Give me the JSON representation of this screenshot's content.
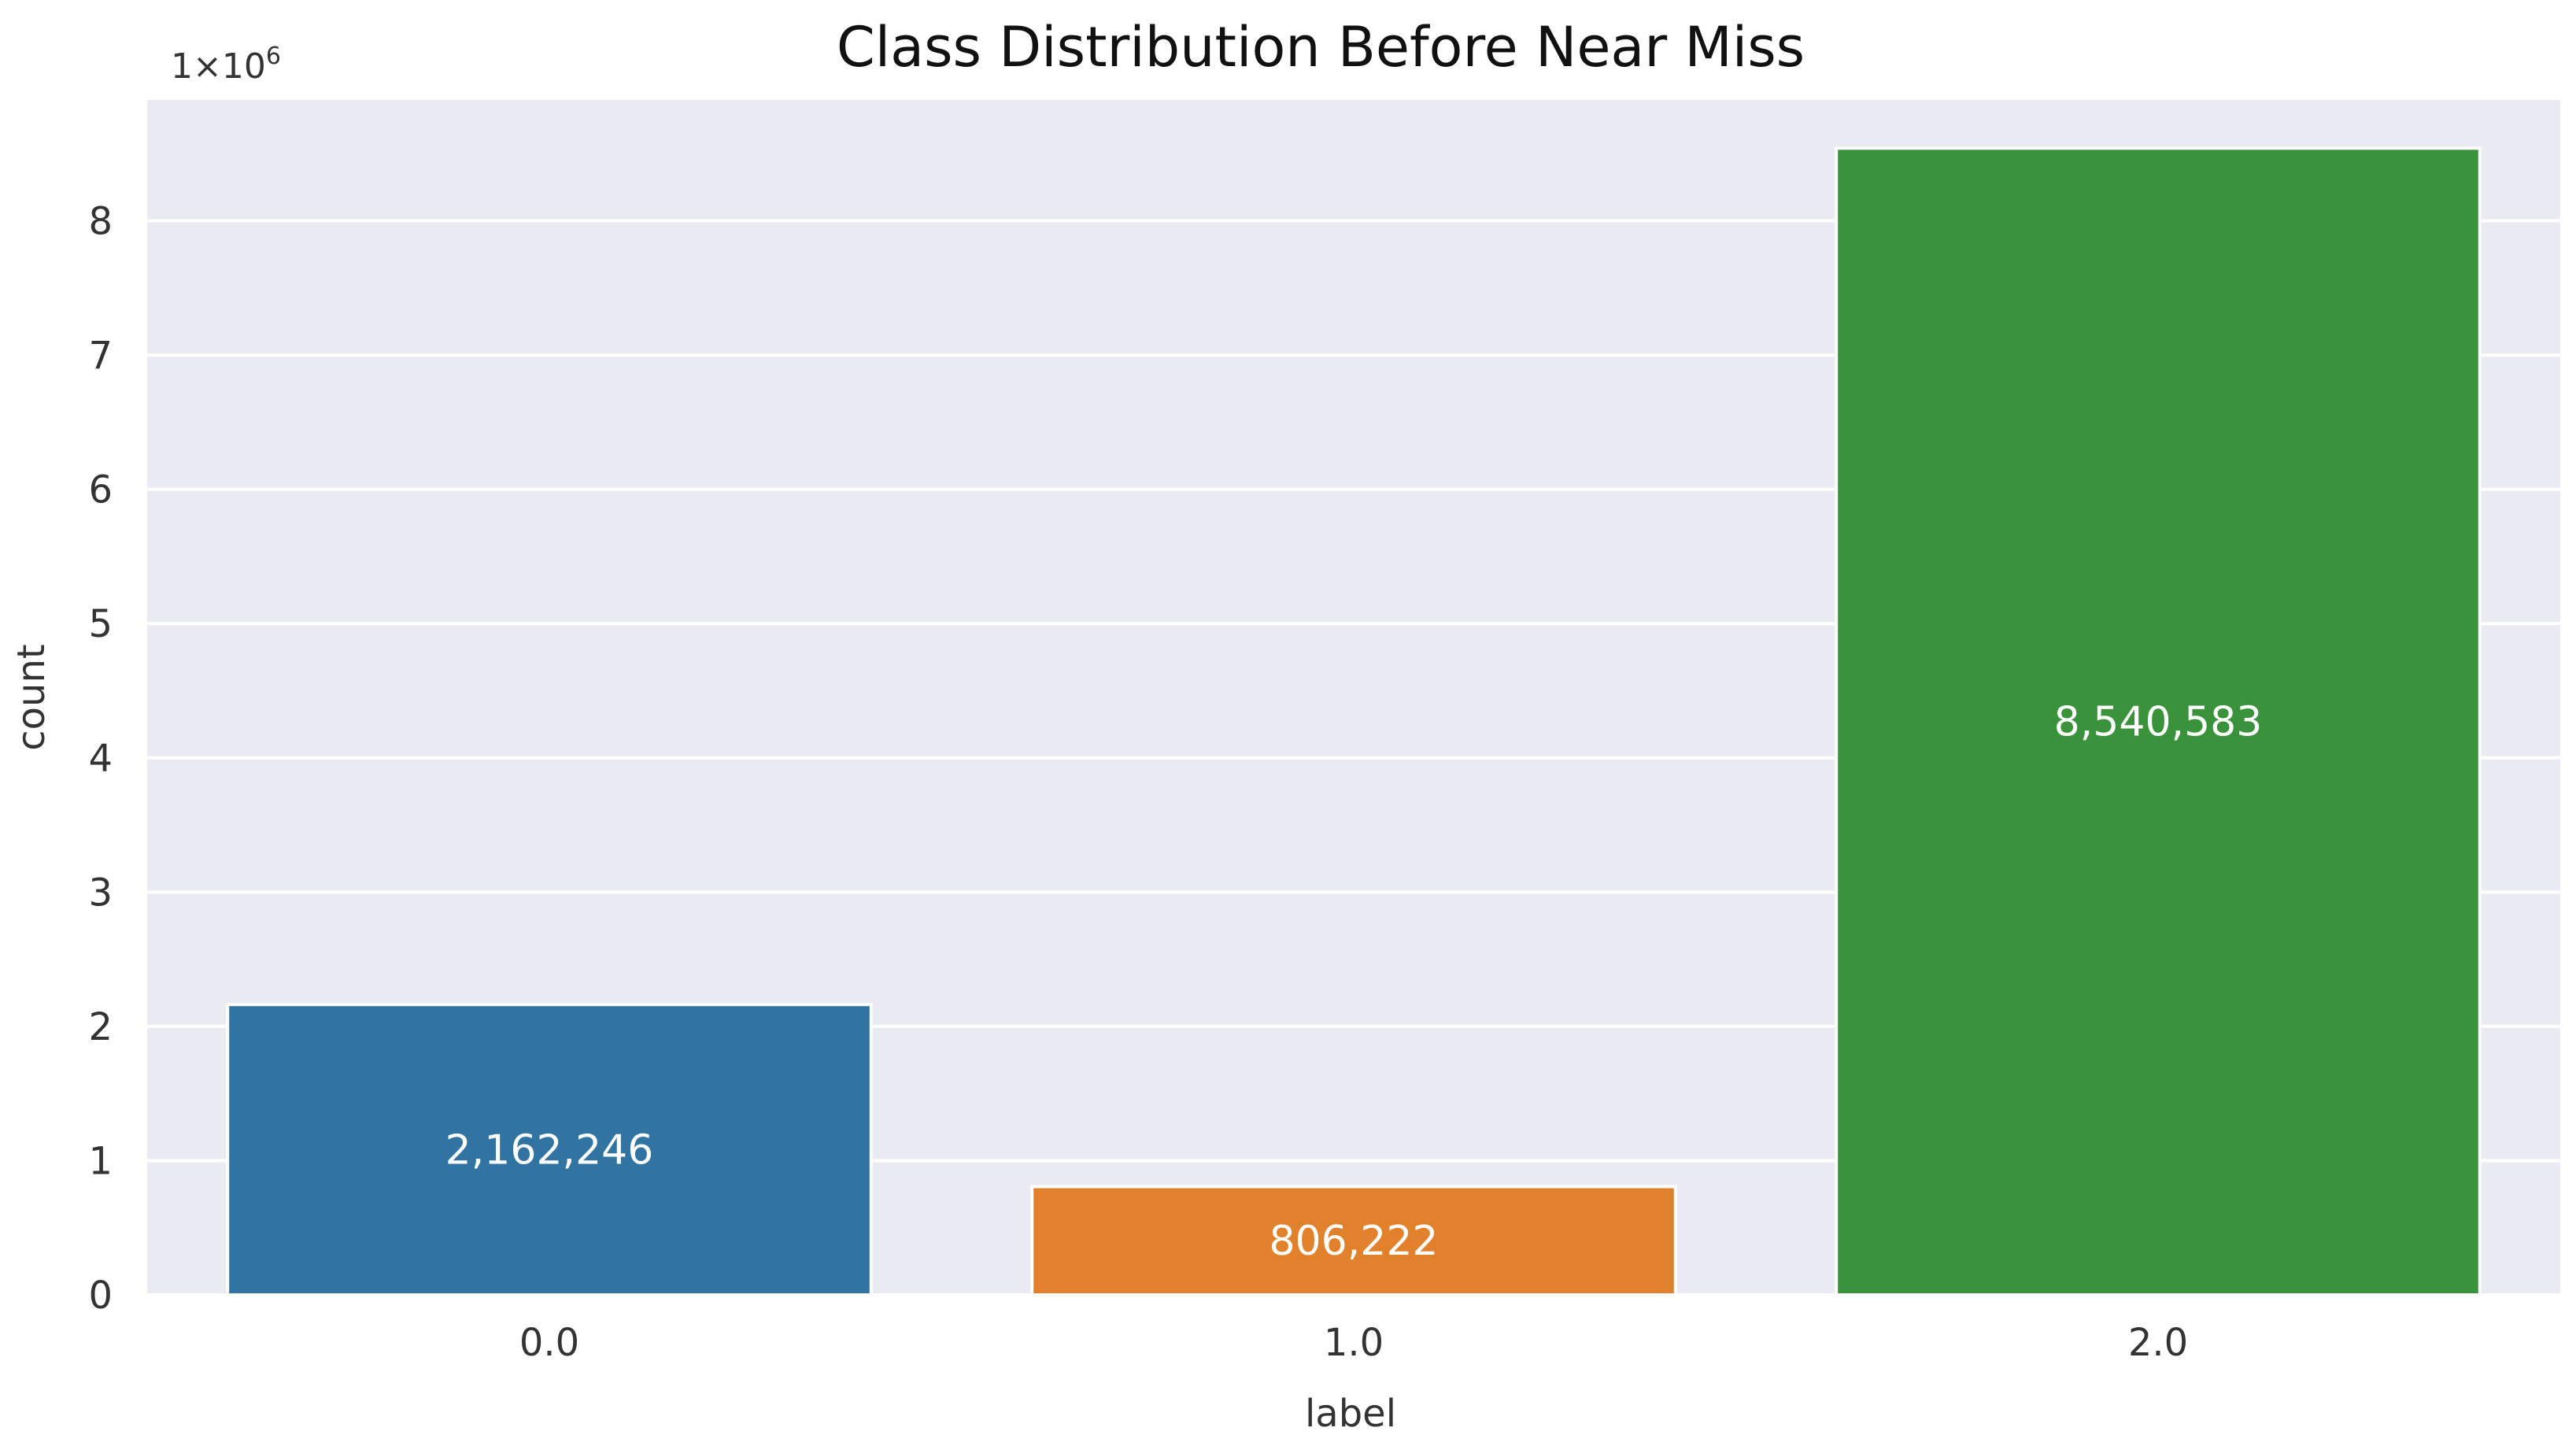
{
  "chart_data": {
    "type": "bar",
    "title": "Class Distribution Before Near Miss",
    "xlabel": "label",
    "ylabel": "count",
    "categories": [
      "0.0",
      "1.0",
      "2.0"
    ],
    "values": [
      2162246,
      806222,
      8540583
    ],
    "bar_labels": [
      "2,162,246",
      "806,222",
      "8,540,583"
    ],
    "colors": [
      "#3274a1",
      "#e1812c",
      "#3a923a"
    ],
    "ylim": [
      0,
      8900000
    ],
    "yticks": [
      0,
      1000000,
      2000000,
      3000000,
      4000000,
      5000000,
      6000000,
      7000000,
      8000000
    ],
    "ytick_labels": [
      "0",
      "1",
      "2",
      "3",
      "4",
      "5",
      "6",
      "7",
      "8"
    ],
    "y_offset": {
      "base": "1×10",
      "exponent": "6"
    },
    "grid": true,
    "background": "#eaeaf2",
    "grid_color": "#ffffff",
    "legend": "none"
  }
}
